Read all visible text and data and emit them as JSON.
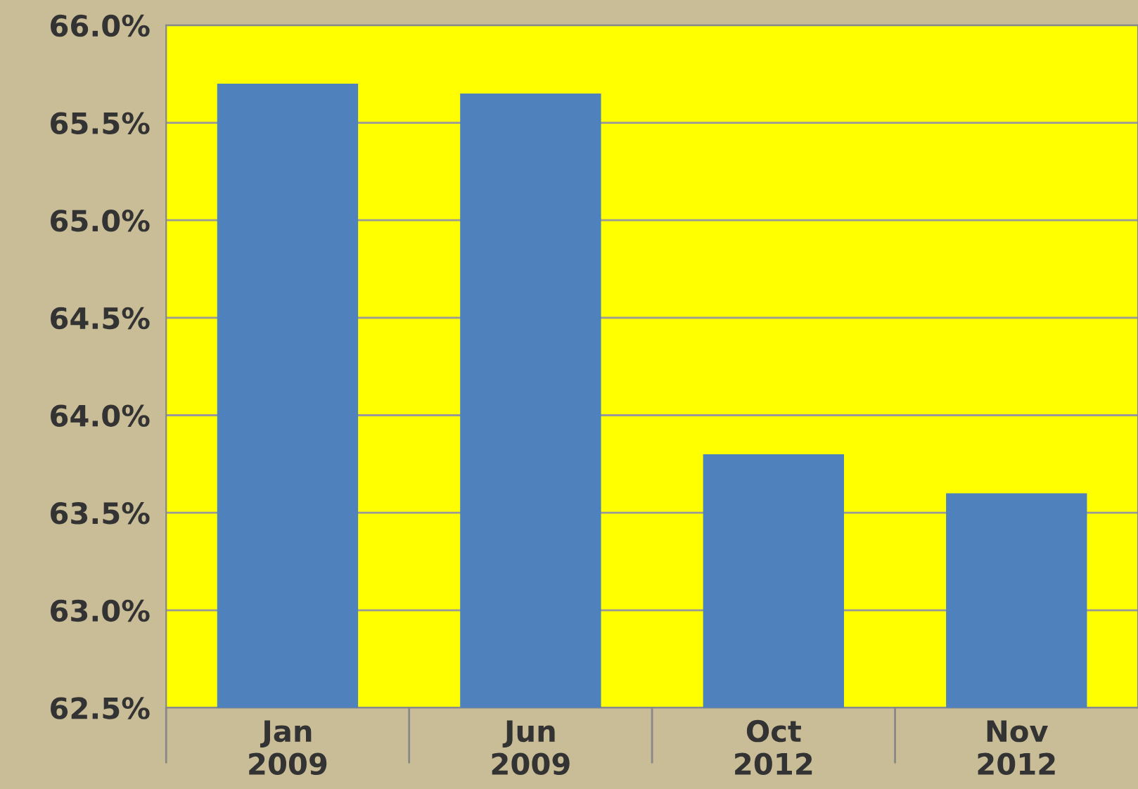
{
  "chart_data": {
    "type": "bar",
    "categories": [
      "Jan\n2009",
      "Jun\n2009",
      "Oct\n2012",
      "Nov\n2012"
    ],
    "values": [
      65.7,
      65.65,
      63.8,
      63.6
    ],
    "color": "#4f81bd",
    "ylim": [
      62.5,
      66.0
    ],
    "yticks": [
      {
        "value": 62.5,
        "label": "62.5%"
      },
      {
        "value": 63.0,
        "label": "63.0%"
      },
      {
        "value": 63.5,
        "label": "63.5%"
      },
      {
        "value": 64.0,
        "label": "64.0%"
      },
      {
        "value": 64.5,
        "label": "64.5%"
      },
      {
        "value": 65.0,
        "label": "65.0%"
      },
      {
        "value": 65.5,
        "label": "65.5%"
      },
      {
        "value": 66.0,
        "label": "66.0%"
      }
    ],
    "grid": "y"
  }
}
